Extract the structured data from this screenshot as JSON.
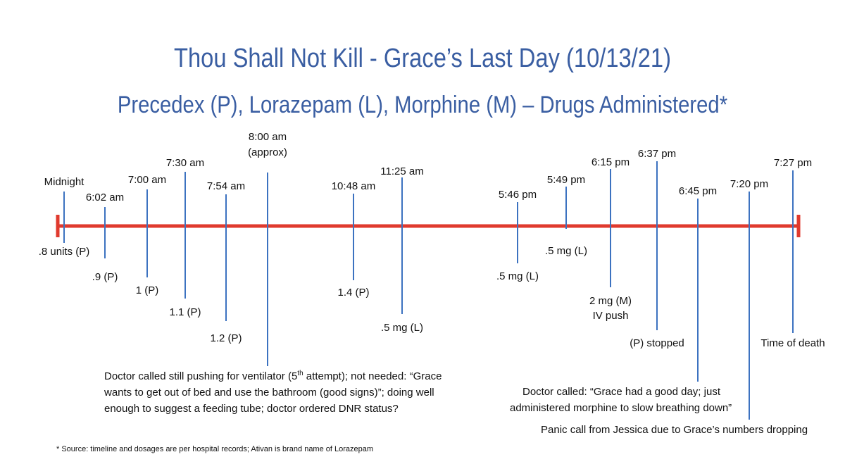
{
  "title": "Thou Shall Not Kill - Grace’s Last Day (10/13/21)",
  "subtitle": "Precedex (P), Lorazepam (L), Morphine (M) – Drugs Administered*",
  "colors": {
    "title": "#3a5ea2",
    "timeline": "#e03a2e",
    "tick": "#3c72c0",
    "text": "#111111"
  },
  "events": [
    {
      "time": [
        "Midnight"
      ],
      "dose": [
        ".8 units (P)"
      ]
    },
    {
      "time": [
        "6:02 am"
      ],
      "dose": [
        ".9 (P)"
      ]
    },
    {
      "time": [
        "7:00 am"
      ],
      "dose": [
        "1 (P)"
      ]
    },
    {
      "time": [
        "7:30 am"
      ],
      "dose": [
        "1.1 (P)"
      ]
    },
    {
      "time": [
        "7:54 am"
      ],
      "dose": [
        "1.2 (P)"
      ]
    },
    {
      "time": [
        "8:00 am",
        "(approx)"
      ],
      "dose": []
    },
    {
      "time": [
        "10:48 am"
      ],
      "dose": [
        "1.4 (P)"
      ]
    },
    {
      "time": [
        "11:25 am"
      ],
      "dose": [
        ".5 mg (L)"
      ]
    },
    {
      "time": [
        "5:46 pm"
      ],
      "dose": [
        ".5 mg (L)"
      ]
    },
    {
      "time": [
        "5:49 pm"
      ],
      "dose": [
        ".5 mg (L)"
      ]
    },
    {
      "time": [
        "6:15 pm"
      ],
      "dose": [
        "2 mg (M)",
        "IV push"
      ]
    },
    {
      "time": [
        "6:37 pm"
      ],
      "dose": [
        "(P) stopped"
      ]
    },
    {
      "time": [
        "6:45 pm"
      ],
      "dose": []
    },
    {
      "time": [
        "7:20 pm"
      ],
      "dose": []
    },
    {
      "time": [
        "7:27 pm"
      ],
      "dose": [
        "Time of death"
      ]
    }
  ],
  "notes": {
    "morning_line1_pre": "Doctor called still pushing for ventilator (5",
    "morning_line1_sup": "th",
    "morning_line1_post": " attempt); not needed: “Grace",
    "morning_line2": "wants to get out of bed and use the bathroom (good signs)”; doing well",
    "morning_line3": "enough to suggest a feeding tube; doctor ordered DNR status?",
    "evening_line1": "Doctor called: “Grace had a good day; just",
    "evening_line2": "administered morphine to slow breathing down”",
    "panic_call": "Panic call from Jessica due to Grace’s numbers dropping"
  },
  "footnote": "* Source:  timeline and dosages are per hospital records; Ativan is brand name of Lorazepam"
}
